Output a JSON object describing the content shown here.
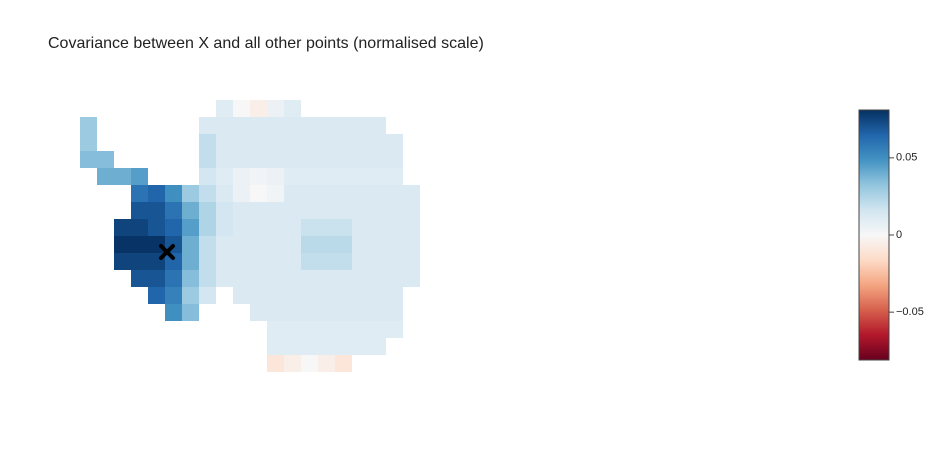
{
  "chart_data": {
    "type": "heatmap",
    "title": "Covariance between X and all other points (normalised scale)",
    "z": [
      [
        null,
        null,
        null,
        null,
        null,
        null,
        null,
        null,
        0.01,
        0,
        -0.005,
        0.005,
        0.01,
        null,
        null,
        null,
        null,
        null,
        null,
        null
      ],
      [
        0.03,
        null,
        null,
        null,
        null,
        null,
        null,
        0.012,
        0.012,
        0.012,
        0.012,
        0.012,
        0.012,
        0.012,
        0.012,
        0.012,
        0.012,
        0.012,
        null,
        null
      ],
      [
        0.03,
        null,
        null,
        null,
        null,
        null,
        null,
        0.02,
        0.012,
        0.012,
        0.012,
        0.012,
        0.012,
        0.012,
        0.012,
        0.012,
        0.012,
        0.012,
        0.012,
        null
      ],
      [
        0.035,
        0.035,
        null,
        null,
        null,
        null,
        null,
        0.02,
        0.012,
        0.012,
        0.012,
        0.012,
        0.012,
        0.012,
        0.012,
        0.012,
        0.012,
        0.012,
        0.012,
        null
      ],
      [
        null,
        0.04,
        0.04,
        0.045,
        null,
        null,
        null,
        0.015,
        0.01,
        0.005,
        0.003,
        0.005,
        0.01,
        0.01,
        0.01,
        0.01,
        0.01,
        0.01,
        0.01,
        null
      ],
      [
        null,
        null,
        null,
        0.06,
        0.065,
        0.05,
        0.03,
        0.02,
        0.012,
        0.005,
        0,
        0.003,
        0.012,
        0.012,
        0.012,
        0.012,
        0.012,
        0.012,
        0.012,
        0.012
      ],
      [
        null,
        null,
        null,
        0.07,
        0.07,
        0.06,
        0.04,
        0.025,
        0.015,
        0.012,
        0.012,
        0.012,
        0.012,
        0.012,
        0.012,
        0.012,
        0.012,
        0.012,
        0.012,
        0.012
      ],
      [
        null,
        null,
        0.075,
        0.075,
        0.07,
        0.065,
        0.045,
        0.025,
        0.015,
        0.012,
        0.012,
        0.012,
        0.012,
        0.018,
        0.018,
        0.018,
        0.012,
        0.012,
        0.012,
        0.012
      ],
      [
        null,
        null,
        0.08,
        0.08,
        0.08,
        0.07,
        0.04,
        0.02,
        0.012,
        0.012,
        0.012,
        0.012,
        0.012,
        0.022,
        0.022,
        0.022,
        0.012,
        0.012,
        0.012,
        0.012
      ],
      [
        null,
        null,
        0.075,
        0.075,
        0.075,
        0.065,
        0.04,
        0.02,
        0.012,
        0.012,
        0.012,
        0.012,
        0.012,
        0.02,
        0.02,
        0.02,
        0.012,
        0.012,
        0.012,
        0.012
      ],
      [
        null,
        null,
        null,
        0.07,
        0.07,
        0.06,
        0.035,
        0.02,
        0.012,
        0.012,
        0.012,
        0.012,
        0.012,
        0.012,
        0.012,
        0.012,
        0.012,
        0.012,
        0.012,
        0.012
      ],
      [
        null,
        null,
        null,
        null,
        0.065,
        0.055,
        0.03,
        0.015,
        null,
        0.012,
        0.012,
        0.012,
        0.012,
        0.012,
        0.012,
        0.012,
        0.012,
        0.012,
        0.012,
        null
      ],
      [
        null,
        null,
        null,
        null,
        null,
        0.05,
        0.035,
        null,
        null,
        null,
        0.012,
        0.012,
        0.012,
        0.012,
        0.012,
        0.012,
        0.012,
        0.012,
        0.012,
        null
      ],
      [
        null,
        null,
        null,
        null,
        null,
        null,
        null,
        null,
        null,
        null,
        null,
        0.01,
        0.01,
        0.01,
        0.01,
        0.01,
        0.01,
        0.01,
        0.01,
        null
      ],
      [
        null,
        null,
        null,
        null,
        null,
        null,
        null,
        null,
        null,
        null,
        null,
        0.01,
        0.01,
        0.01,
        0.01,
        0.01,
        0.01,
        0.01,
        null,
        null
      ],
      [
        null,
        null,
        null,
        null,
        null,
        null,
        null,
        null,
        null,
        null,
        null,
        -0.01,
        -0.005,
        0,
        -0.005,
        -0.01,
        null,
        null,
        null,
        null
      ]
    ],
    "colorscale": [
      "#67001f",
      "#b2182b",
      "#d6604d",
      "#f4a582",
      "#fddbc7",
      "#f7f7f7",
      "#d1e5f0",
      "#92c5de",
      "#4393c3",
      "#2166ac",
      "#053061"
    ],
    "zlim": [
      -0.081,
      0.081
    ],
    "zticks": [
      {
        "value": -0.05,
        "label": "−0.05"
      },
      0,
      0.05
    ]
  }
}
